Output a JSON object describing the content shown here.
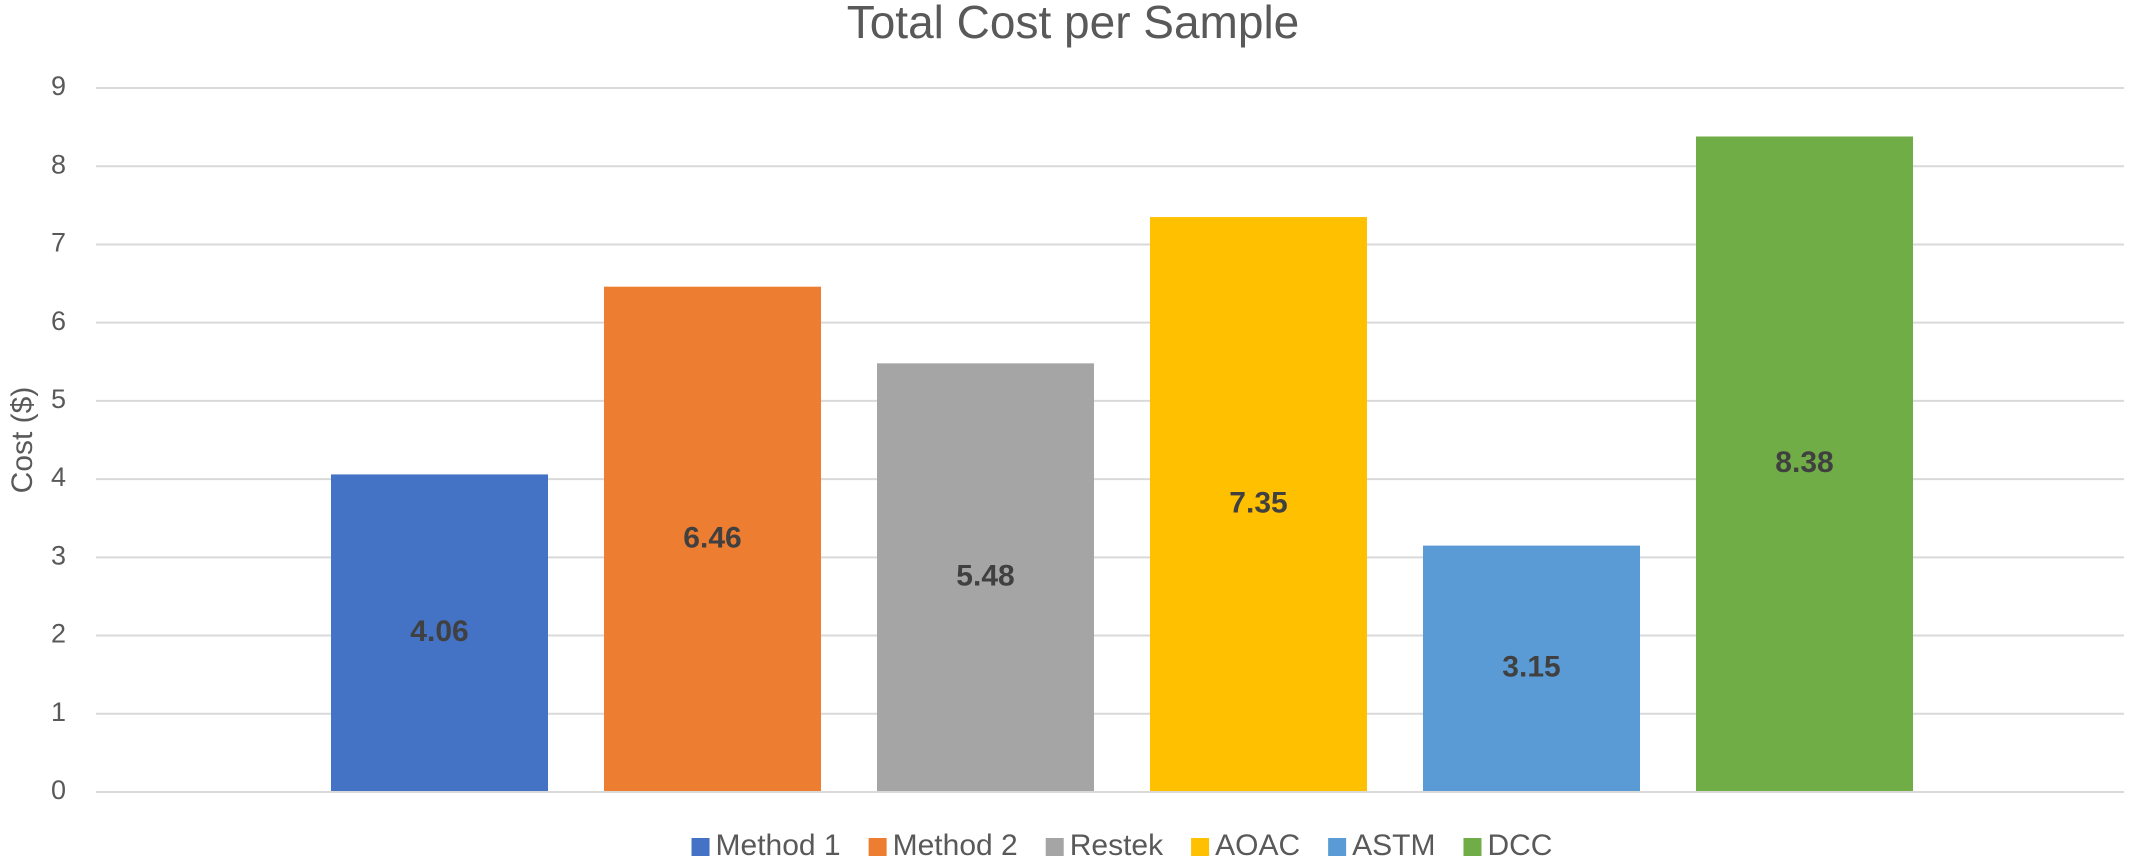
{
  "chart_data": {
    "type": "bar",
    "title": "Total Cost per Sample",
    "y_label": "Cost ($)",
    "categories": [
      null
    ],
    "series": [
      {
        "name": "Method 1",
        "color": "#4472c4",
        "values": [
          4.06
        ]
      },
      {
        "name": "Method 2",
        "color": "#ed7d31",
        "values": [
          6.46
        ]
      },
      {
        "name": "Restek",
        "color": "#a5a5a5",
        "values": [
          5.48
        ]
      },
      {
        "name": "AOAC",
        "color": "#ffc000",
        "values": [
          7.35
        ]
      },
      {
        "name": "ASTM",
        "color": "#5b9bd5",
        "values": [
          3.15
        ]
      },
      {
        "name": "DCC",
        "color": "#70ad47",
        "values": [
          8.38
        ]
      }
    ],
    "ylim": [
      0,
      9
    ],
    "yticks": [
      0,
      1,
      2,
      3,
      4,
      5,
      6,
      7,
      8,
      9
    ],
    "grid": true,
    "legend": "bottom",
    "data_labels": true
  }
}
